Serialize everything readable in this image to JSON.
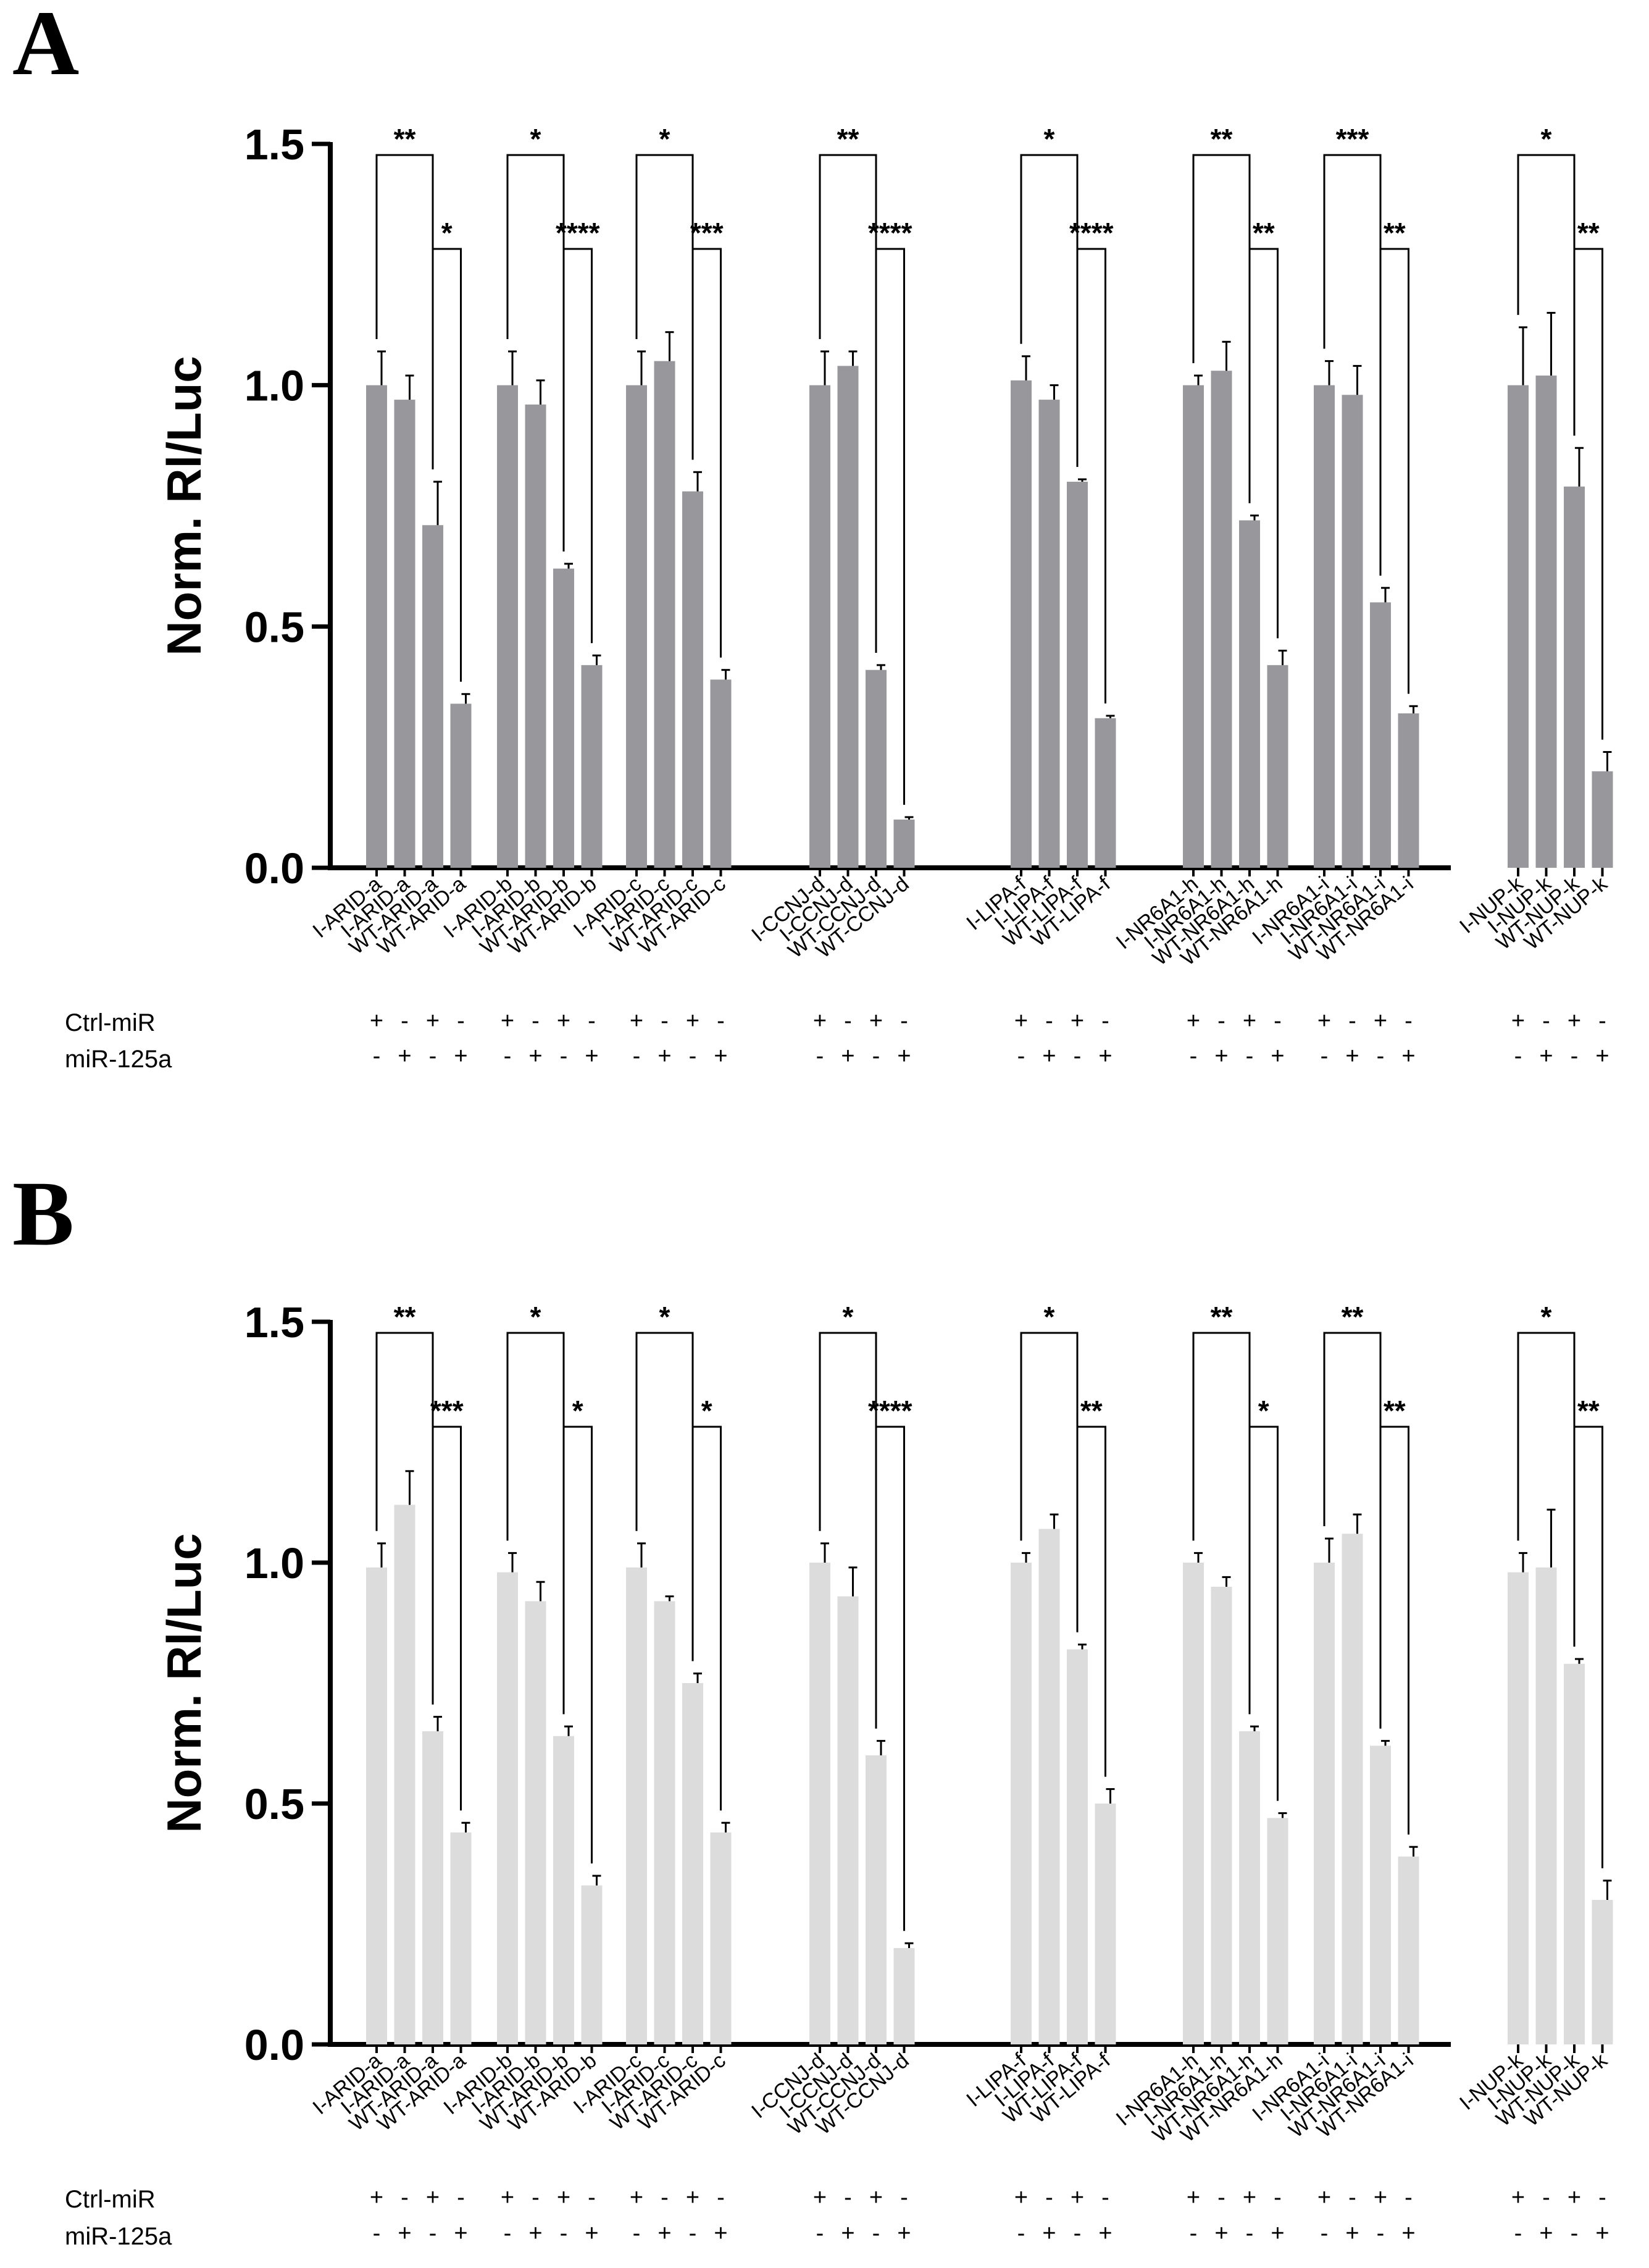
{
  "chart_data": [
    {
      "panel": "A",
      "type": "bar",
      "ylabel": "Norm. Rl/Luc",
      "ylim": [
        0,
        1.5
      ],
      "yticks": [
        "0.0",
        "0.5",
        "1.0",
        "1.5"
      ],
      "bar_color": "#98989c",
      "categories": [
        "I-ARID-a",
        "I-ARID-a",
        "WT-ARID-a",
        "WT-ARID-a",
        "I-ARID-b",
        "I-ARID-b",
        "WT-ARID-b",
        "WT-ARID-b",
        "I-ARID-c",
        "I-ARID-c",
        "WT-ARID-c",
        "WT-ARID-c",
        "I-CCNJ-d",
        "I-CCNJ-d",
        "WT-CCNJ-d",
        "WT-CCNJ-d",
        "I-LIPA-f",
        "I-LIPA-f",
        "WT-LIPA-f",
        "WT-LIPA-f",
        "I-NR6A1-h",
        "I-NR6A1-h",
        "WT-NR6A1-h",
        "WT-NR6A1-h",
        "I-NR6A1-i",
        "I-NR6A1-i",
        "WT-NR6A1-i",
        "WT-NR6A1-i",
        "I-NUP-k",
        "I-NUP-k",
        "WT-NUP-k",
        "WT-NUP-k"
      ],
      "values": [
        1.0,
        0.97,
        0.71,
        0.34,
        1.0,
        0.96,
        0.62,
        0.42,
        1.0,
        1.05,
        0.78,
        0.39,
        1.0,
        1.04,
        0.41,
        0.1,
        1.01,
        0.97,
        0.8,
        0.31,
        1.0,
        1.03,
        0.72,
        0.42,
        1.0,
        0.98,
        0.55,
        0.32,
        1.0,
        1.02,
        0.79,
        0.2
      ],
      "errors": [
        0.07,
        0.05,
        0.09,
        0.02,
        0.07,
        0.05,
        0.01,
        0.02,
        0.07,
        0.06,
        0.04,
        0.02,
        0.07,
        0.03,
        0.01,
        0.005,
        0.05,
        0.03,
        0.005,
        0.005,
        0.02,
        0.06,
        0.01,
        0.03,
        0.05,
        0.06,
        0.03,
        0.015,
        0.12,
        0.13,
        0.08,
        0.04
      ],
      "significance": [
        {
          "from": 0,
          "to": 2,
          "label": "**",
          "level": 1
        },
        {
          "from": 2,
          "to": 3,
          "label": "*",
          "level": 2
        },
        {
          "from": 4,
          "to": 6,
          "label": "*",
          "level": 1
        },
        {
          "from": 6,
          "to": 7,
          "label": "****",
          "level": 2
        },
        {
          "from": 8,
          "to": 10,
          "label": "*",
          "level": 1
        },
        {
          "from": 10,
          "to": 11,
          "label": "***",
          "level": 2
        },
        {
          "from": 12,
          "to": 14,
          "label": "**",
          "level": 1
        },
        {
          "from": 14,
          "to": 15,
          "label": "****",
          "level": 2
        },
        {
          "from": 16,
          "to": 18,
          "label": "*",
          "level": 1
        },
        {
          "from": 18,
          "to": 19,
          "label": "****",
          "level": 2
        },
        {
          "from": 20,
          "to": 22,
          "label": "**",
          "level": 1
        },
        {
          "from": 22,
          "to": 23,
          "label": "**",
          "level": 2
        },
        {
          "from": 24,
          "to": 26,
          "label": "***",
          "level": 1
        },
        {
          "from": 26,
          "to": 27,
          "label": "**",
          "level": 2
        },
        {
          "from": 28,
          "to": 30,
          "label": "*",
          "level": 1
        },
        {
          "from": 30,
          "to": 31,
          "label": "**",
          "level": 2
        }
      ],
      "row_labels": [
        "Ctrl-miR",
        "miR-125a"
      ],
      "ctrl_mir": [
        "+",
        "-",
        "+",
        "-",
        "+",
        "-",
        "+",
        "-",
        "+",
        "-",
        "+",
        "-",
        "+",
        "-",
        "+",
        "-",
        "+",
        "-",
        "+",
        "-",
        "+",
        "-",
        "+",
        "-",
        "+",
        "-",
        "+",
        "-",
        "+",
        "-",
        "+",
        "-"
      ],
      "mir_125a": [
        "-",
        "+",
        "-",
        "+",
        "-",
        "+",
        "-",
        "+",
        "-",
        "+",
        "-",
        "+",
        "-",
        "+",
        "-",
        "+",
        "-",
        "+",
        "-",
        "+",
        "-",
        "+",
        "-",
        "+",
        "-",
        "+",
        "-",
        "+",
        "-",
        "+",
        "-",
        "+"
      ]
    },
    {
      "panel": "B",
      "type": "bar",
      "ylabel": "Norm. Rl/Luc",
      "ylim": [
        0,
        1.5
      ],
      "yticks": [
        "0.0",
        "0.5",
        "1.0",
        "1.5"
      ],
      "bar_color": "#dcdcdc",
      "categories": [
        "I-ARID-a",
        "I-ARID-a",
        "WT-ARID-a",
        "WT-ARID-a",
        "I-ARID-b",
        "I-ARID-b",
        "WT-ARID-b",
        "WT-ARID-b",
        "I-ARID-c",
        "I-ARID-c",
        "WT-ARID-c",
        "WT-ARID-c",
        "I-CCNJ-d",
        "I-CCNJ-d",
        "WT-CCNJ-d",
        "WT-CCNJ-d",
        "I-LIPA-f",
        "I-LIPA-f",
        "WT-LIPA-f",
        "WT-LIPA-f",
        "I-NR6A1-h",
        "I-NR6A1-h",
        "WT-NR6A1-h",
        "WT-NR6A1-h",
        "I-NR6A1-i",
        "I-NR6A1-i",
        "WT-NR6A1-i",
        "WT-NR6A1-i",
        "I-NUP-k",
        "I-NUP-k",
        "WT-NUP-k",
        "WT-NUP-k"
      ],
      "values": [
        0.99,
        1.12,
        0.65,
        0.44,
        0.98,
        0.92,
        0.64,
        0.33,
        0.99,
        0.92,
        0.75,
        0.44,
        1.0,
        0.93,
        0.6,
        0.2,
        1.0,
        1.07,
        0.82,
        0.5,
        1.0,
        0.95,
        0.65,
        0.47,
        1.0,
        1.06,
        0.62,
        0.39,
        0.98,
        0.99,
        0.79,
        0.3
      ],
      "errors": [
        0.05,
        0.07,
        0.03,
        0.02,
        0.04,
        0.04,
        0.02,
        0.02,
        0.05,
        0.01,
        0.02,
        0.02,
        0.04,
        0.06,
        0.03,
        0.01,
        0.02,
        0.03,
        0.01,
        0.03,
        0.02,
        0.02,
        0.01,
        0.01,
        0.05,
        0.04,
        0.01,
        0.02,
        0.04,
        0.12,
        0.01,
        0.04
      ],
      "significance": [
        {
          "from": 0,
          "to": 2,
          "label": "**",
          "level": 1
        },
        {
          "from": 2,
          "to": 3,
          "label": "***",
          "level": 2
        },
        {
          "from": 4,
          "to": 6,
          "label": "*",
          "level": 1
        },
        {
          "from": 6,
          "to": 7,
          "label": "*",
          "level": 2
        },
        {
          "from": 8,
          "to": 10,
          "label": "*",
          "level": 1
        },
        {
          "from": 10,
          "to": 11,
          "label": "*",
          "level": 2
        },
        {
          "from": 12,
          "to": 14,
          "label": "*",
          "level": 1
        },
        {
          "from": 14,
          "to": 15,
          "label": "****",
          "level": 2
        },
        {
          "from": 16,
          "to": 18,
          "label": "*",
          "level": 1
        },
        {
          "from": 18,
          "to": 19,
          "label": "**",
          "level": 2
        },
        {
          "from": 20,
          "to": 22,
          "label": "**",
          "level": 1
        },
        {
          "from": 22,
          "to": 23,
          "label": "*",
          "level": 2
        },
        {
          "from": 24,
          "to": 26,
          "label": "**",
          "level": 1
        },
        {
          "from": 26,
          "to": 27,
          "label": "**",
          "level": 2
        },
        {
          "from": 28,
          "to": 30,
          "label": "*",
          "level": 1
        },
        {
          "from": 30,
          "to": 31,
          "label": "**",
          "level": 2
        }
      ],
      "row_labels": [
        "Ctrl-miR",
        "miR-125a"
      ],
      "ctrl_mir": [
        "+",
        "-",
        "+",
        "-",
        "+",
        "-",
        "+",
        "-",
        "+",
        "-",
        "+",
        "-",
        "+",
        "-",
        "+",
        "-",
        "+",
        "-",
        "+",
        "-",
        "+",
        "-",
        "+",
        "-",
        "+",
        "-",
        "+",
        "-",
        "+",
        "-",
        "+",
        "-"
      ],
      "mir_125a": [
        "-",
        "+",
        "-",
        "+",
        "-",
        "+",
        "-",
        "+",
        "-",
        "+",
        "-",
        "+",
        "-",
        "+",
        "-",
        "+",
        "-",
        "+",
        "-",
        "+",
        "-",
        "+",
        "-",
        "+",
        "-",
        "+",
        "-",
        "+",
        "-",
        "+",
        "-",
        "+"
      ]
    }
  ]
}
